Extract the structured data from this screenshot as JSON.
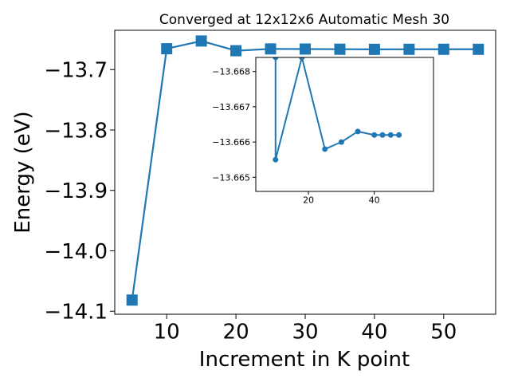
{
  "chart_data": [
    {
      "type": "line",
      "title": "Converged at 12x12x6 Automatic Mesh 30",
      "xlabel": "Increment in K point",
      "ylabel": "Energy (eV)",
      "xlim": [
        2.5,
        57.5
      ],
      "ylim": [
        -14.105,
        -13.635
      ],
      "xticks": [
        10,
        20,
        30,
        40,
        50
      ],
      "yticks": [
        -13.7,
        -13.8,
        -13.9,
        -14.0,
        -14.1
      ],
      "xtick_labels": [
        "10",
        "20",
        "30",
        "40",
        "50"
      ],
      "ytick_labels": [
        "−13.7",
        "−13.8",
        "−13.9",
        "−14.0",
        "−14.1"
      ],
      "grid": false,
      "color": "#1f77b4",
      "marker": "square",
      "series": [
        {
          "x": [
            5,
            10,
            15,
            20,
            25,
            30,
            35,
            40,
            45,
            50,
            55
          ],
          "y": [
            -14.0816,
            -13.6655,
            -13.6527,
            -13.6688,
            -13.6658,
            -13.666,
            -13.6663,
            -13.6665,
            -13.6664,
            -13.6664,
            -13.6664
          ]
        }
      ]
    },
    {
      "type": "line",
      "title": "",
      "xlabel": "",
      "ylabel": "",
      "xlim": [
        4,
        58
      ],
      "ylim": [
        -13.6646,
        -13.6684
      ],
      "xticks": [
        20,
        40
      ],
      "yticks": [
        -13.668,
        -13.667,
        -13.666,
        -13.665
      ],
      "xtick_labels": [
        "20",
        "40"
      ],
      "ytick_labels": [
        "−13.668",
        "−13.667",
        "−13.666",
        "−13.665"
      ],
      "grid": false,
      "color": "#1f77b4",
      "marker": "circle",
      "series": [
        {
          "x": [
            10,
            10,
            18,
            25,
            30,
            35,
            40,
            42.5,
            45,
            47.5
          ],
          "y": [
            -13.6684,
            -13.6655,
            -13.6684,
            -13.6658,
            -13.666,
            -13.6663,
            -13.6662,
            -13.6662,
            -13.6662,
            -13.6662
          ]
        }
      ]
    }
  ]
}
